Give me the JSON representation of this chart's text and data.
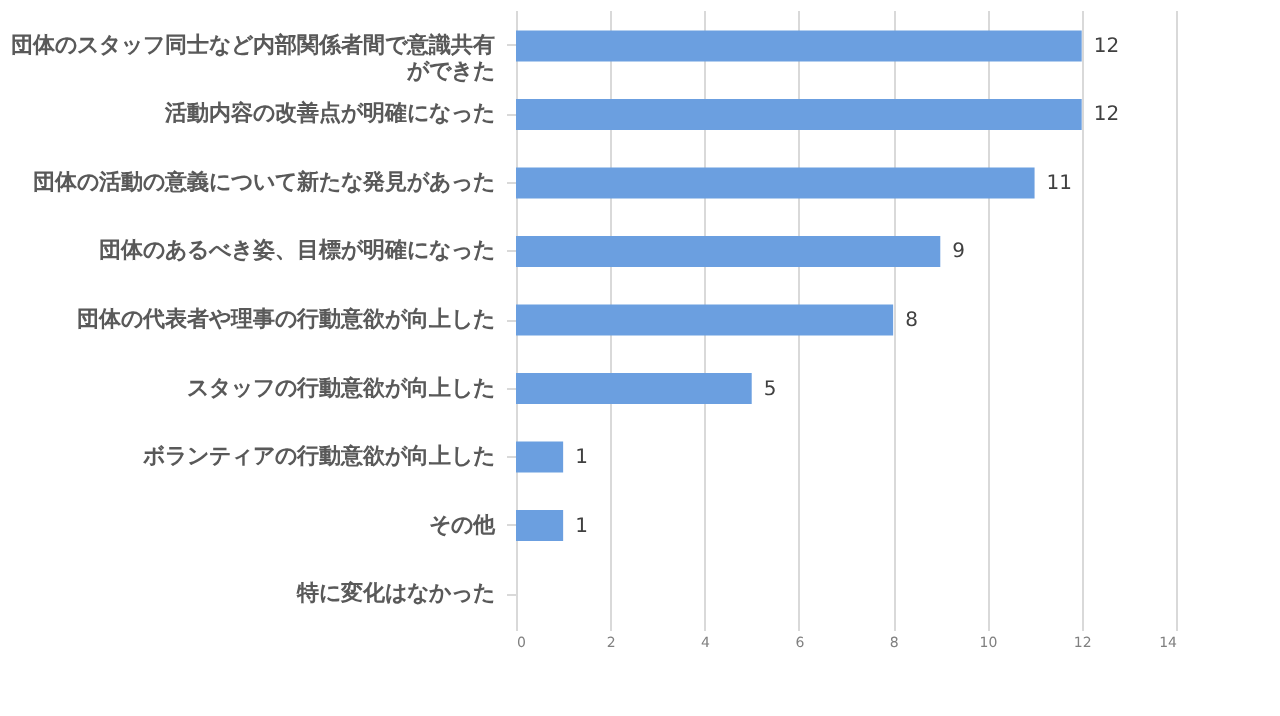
{
  "chart_data": {
    "type": "bar",
    "orientation": "horizontal",
    "categories": [
      "団体のスタッフ同士など内部関係者間で意識共有ができた",
      "活動内容の改善点が明確になった",
      "団体の活動の意義について新たな発見があった",
      "団体のあるべき姿、目標が明確になった",
      "団体の代表者や理事の行動意欲が向上した",
      "スタッフの行動意欲が向上した",
      "ボランティアの行動意欲が向上した",
      "その他",
      "特に変化はなかった"
    ],
    "values": [
      12,
      12,
      11,
      9,
      8,
      5,
      1,
      1,
      0
    ],
    "value_labels": [
      "12",
      "12",
      "11",
      "9",
      "8",
      "5",
      "1",
      "1",
      null
    ],
    "color": "#6b9fe0",
    "xlim": [
      0,
      14
    ],
    "xticks": [
      0,
      2,
      4,
      6,
      8,
      10,
      12,
      14
    ],
    "grid": "x"
  }
}
